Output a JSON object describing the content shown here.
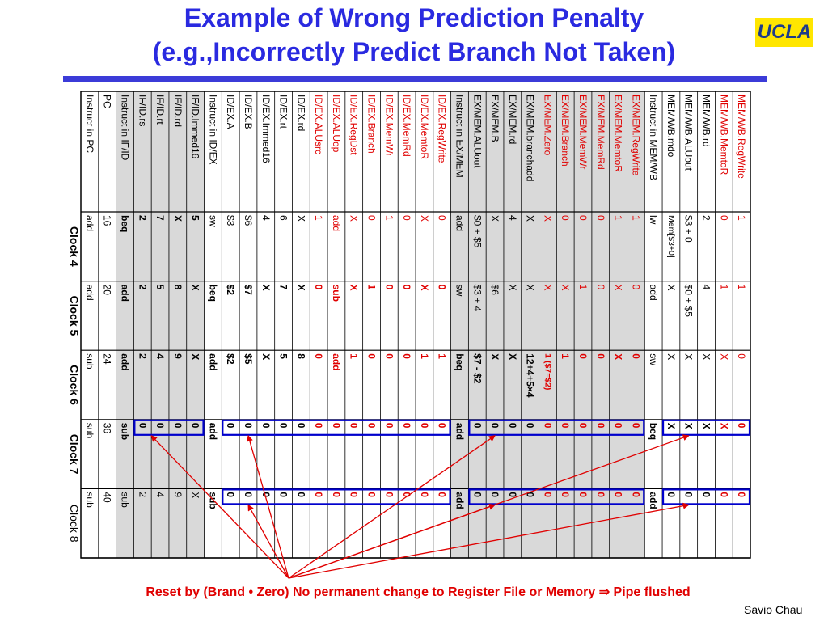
{
  "title_line1": "Example of Wrong Prediction Penalty",
  "title_line2": "(e.g.,Incorrectly Predict Branch Not Taken)",
  "logo_text": "UCLA",
  "caption_text": "Reset by (Brand • Zero) No permanent change to Register File or Memory ⇒ Pipe flushed",
  "author": "Savio Chau",
  "colors": {
    "title": "#2a2ae0",
    "red": "#e00000",
    "box": "#0000cc",
    "shade": "#d9d9d9",
    "logo_bg": "#ffe600"
  },
  "table": {
    "signals": [
      {
        "label": "Instruct in PC",
        "color": "black",
        "shade": false
      },
      {
        "label": "PC",
        "color": "black",
        "shade": false
      },
      {
        "label": "Instruct in IF/ID",
        "color": "black",
        "shade": true
      },
      {
        "label": "IF/ID.rs",
        "color": "black",
        "shade": true
      },
      {
        "label": "IF/ID.rt",
        "color": "black",
        "shade": true
      },
      {
        "label": "IF/ID.rd",
        "color": "black",
        "shade": true
      },
      {
        "label": "IF/ID.Immed16",
        "color": "black",
        "shade": true
      },
      {
        "label": "Instruct in ID/EX",
        "color": "black",
        "shade": false
      },
      {
        "label": "ID/EX.A",
        "color": "black",
        "shade": false
      },
      {
        "label": "ID/EX.B",
        "color": "black",
        "shade": false
      },
      {
        "label": "ID/EX.Immed16",
        "color": "black",
        "shade": false
      },
      {
        "label": "ID/EX.rt",
        "color": "black",
        "shade": false
      },
      {
        "label": "ID/EX.rd",
        "color": "black",
        "shade": false
      },
      {
        "label": "ID/EX.ALUsrc",
        "color": "red",
        "shade": false
      },
      {
        "label": "ID/EX.ALUop",
        "color": "red",
        "shade": false
      },
      {
        "label": "ID/EX.RegDst",
        "color": "red",
        "shade": false
      },
      {
        "label": "ID/EX.Branch",
        "color": "red",
        "shade": false
      },
      {
        "label": "ID/EX.MemWr",
        "color": "red",
        "shade": false
      },
      {
        "label": "ID/EX.MemRd",
        "color": "red",
        "shade": false
      },
      {
        "label": "ID/EX.MemtoR",
        "color": "red",
        "shade": false
      },
      {
        "label": "ID/EX.RegWrite",
        "color": "red",
        "shade": false
      },
      {
        "label": "Instruct in EX/MEM",
        "color": "black",
        "shade": true
      },
      {
        "label": "EX/MEM.ALUout",
        "color": "black",
        "shade": true
      },
      {
        "label": "EX/MEM.B",
        "color": "black",
        "shade": true
      },
      {
        "label": "EX/MEM.rd",
        "color": "black",
        "shade": true
      },
      {
        "label": "EX/MEM.branchadd",
        "color": "black",
        "shade": true
      },
      {
        "label": "EX/MEM.Zero",
        "color": "red",
        "shade": true
      },
      {
        "label": "EX/MEM.Branch",
        "color": "red",
        "shade": true
      },
      {
        "label": "EX/MEM.MemWr",
        "color": "red",
        "shade": true
      },
      {
        "label": "EX/MEM.MemRd",
        "color": "red",
        "shade": true
      },
      {
        "label": "EX/MEM.MemtoR",
        "color": "red",
        "shade": true
      },
      {
        "label": "EX/MEM.RegWrite",
        "color": "red",
        "shade": true
      },
      {
        "label": "Instruct in MEM/WB",
        "color": "black",
        "shade": false
      },
      {
        "label": "MEM/WB.mdo",
        "color": "black",
        "shade": false
      },
      {
        "label": "MEM/WB.ALUout",
        "color": "black",
        "shade": false
      },
      {
        "label": "MEM/WB.rd",
        "color": "black",
        "shade": false
      },
      {
        "label": "MEM/WB.MemtoR",
        "color": "red",
        "shade": false
      },
      {
        "label": "MEM/WB.RegWrite",
        "color": "red",
        "shade": false
      }
    ],
    "clocks": [
      {
        "label": "Clock 4",
        "bold": true,
        "values": [
          "add",
          "16",
          "beq",
          "2",
          "7",
          "X",
          "5",
          "sw",
          "$3",
          "$6",
          "4",
          "6",
          "X",
          "1",
          "add",
          "X",
          "0",
          "1",
          "0",
          "X",
          "0",
          "add",
          "$0 + $5",
          "X",
          "4",
          "X",
          "X",
          "0",
          "0",
          "0",
          "1",
          "1",
          "lw",
          "Mem[$3+0]",
          "$3 + 0",
          "2",
          "0",
          "1"
        ],
        "bold_mask": [
          0,
          0,
          1,
          1,
          1,
          1,
          1,
          0,
          0,
          0,
          0,
          0,
          0,
          0,
          0,
          0,
          0,
          0,
          0,
          0,
          0,
          0,
          0,
          0,
          0,
          0,
          0,
          0,
          0,
          0,
          0,
          0,
          0,
          0,
          0,
          0,
          0,
          0
        ]
      },
      {
        "label": "Clock 5",
        "bold": true,
        "values": [
          "add",
          "20",
          "add",
          "2",
          "5",
          "8",
          "X",
          "beq",
          "$2",
          "$7",
          "X",
          "7",
          "X",
          "0",
          "sub",
          "X",
          "1",
          "0",
          "0",
          "X",
          "0",
          "sw",
          "$3 + 4",
          "$6",
          "X",
          "X",
          "X",
          "X",
          "1",
          "0",
          "X",
          "0",
          "add",
          "X",
          "$0 + $5",
          "4",
          "1",
          "1"
        ],
        "bold_mask": [
          0,
          0,
          1,
          1,
          1,
          1,
          1,
          1,
          1,
          1,
          1,
          1,
          1,
          1,
          1,
          1,
          1,
          1,
          1,
          1,
          1,
          0,
          0,
          0,
          0,
          0,
          0,
          0,
          0,
          0,
          0,
          0,
          0,
          0,
          0,
          0,
          0,
          0
        ]
      },
      {
        "label": "Clock 6",
        "bold": true,
        "values": [
          "sub",
          "24",
          "add",
          "2",
          "4",
          "9",
          "X",
          "add",
          "$2",
          "$5",
          "X",
          "5",
          "8",
          "0",
          "add",
          "1",
          "0",
          "0",
          "0",
          "1",
          "1",
          "beq",
          "$7 - $2",
          "X",
          "X",
          "12+4+5×4",
          "1 ($7=$2)",
          "1",
          "0",
          "0",
          "X",
          "0",
          "sw",
          "X",
          "X",
          "X",
          "X",
          "0"
        ],
        "bold_mask": [
          0,
          0,
          1,
          1,
          1,
          1,
          1,
          1,
          1,
          1,
          1,
          1,
          1,
          1,
          1,
          1,
          1,
          1,
          1,
          1,
          1,
          1,
          1,
          1,
          1,
          1,
          1,
          1,
          1,
          1,
          1,
          1,
          0,
          0,
          0,
          0,
          0,
          0
        ]
      },
      {
        "label": "Clock 7",
        "bold": true,
        "values": [
          "sub",
          "36",
          "sub",
          "0",
          "0",
          "0",
          "0",
          "add",
          "0",
          "0",
          "0",
          "0",
          "0",
          "0",
          "0",
          "0",
          "0",
          "0",
          "0",
          "0",
          "0",
          "add",
          "0",
          "0",
          "0",
          "0",
          "0",
          "0",
          "0",
          "0",
          "0",
          "0",
          "beq",
          "X",
          "X",
          "X",
          "X",
          "0"
        ],
        "bold_mask": [
          0,
          0,
          1,
          1,
          1,
          1,
          1,
          1,
          1,
          1,
          1,
          1,
          1,
          1,
          1,
          1,
          1,
          1,
          1,
          1,
          1,
          1,
          1,
          1,
          1,
          1,
          1,
          1,
          1,
          1,
          1,
          1,
          1,
          1,
          1,
          1,
          1,
          1
        ]
      },
      {
        "label": "Clock 8",
        "bold": false,
        "values": [
          "sub",
          "40",
          "sub",
          "2",
          "4",
          "9",
          "X",
          "sub",
          "0",
          "0",
          "0",
          "0",
          "0",
          "0",
          "0",
          "0",
          "0",
          "0",
          "0",
          "0",
          "0",
          "add",
          "0",
          "0",
          "0",
          "0",
          "0",
          "0",
          "0",
          "0",
          "0",
          "0",
          "add",
          "0",
          "0",
          "0",
          "0",
          "0"
        ],
        "bold_mask": [
          0,
          0,
          0,
          0,
          0,
          0,
          0,
          1,
          1,
          1,
          1,
          1,
          1,
          1,
          1,
          1,
          1,
          1,
          1,
          1,
          1,
          1,
          1,
          1,
          1,
          1,
          1,
          1,
          1,
          1,
          1,
          1,
          1,
          1,
          1,
          1,
          1,
          1
        ]
      }
    ]
  }
}
